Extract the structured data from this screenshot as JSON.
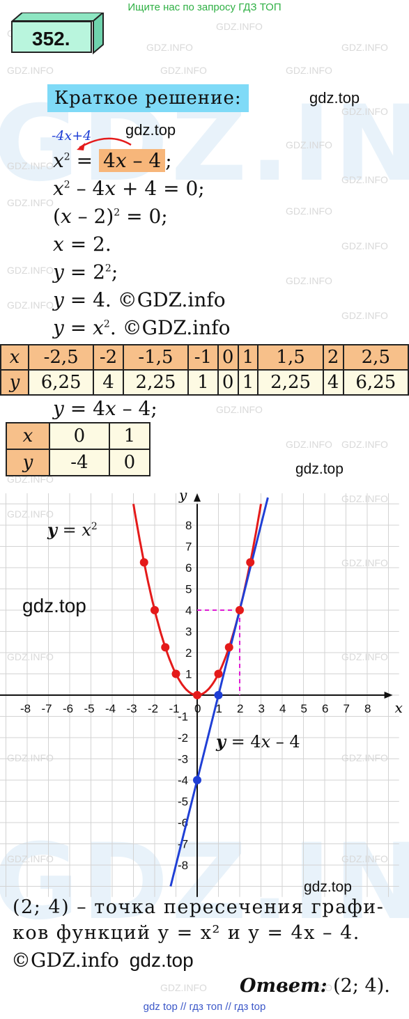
{
  "banner": "Ищите нас по запросу ГДЗ ТОП",
  "exercise_number": "352.",
  "heading": "Краткое решение:",
  "gdz_labels": [
    "gdz.top",
    "gdz.top",
    "gdz.top",
    "gdz.top",
    "gdz.top"
  ],
  "watermark_small": "GDZ.INFO",
  "watermark_big": "GDZ.INFO",
  "arrow_note": "-4x+4",
  "solution_lines": [
    "x² = 4x – 4;",
    "x² – 4x + 4 = 0;",
    "(x – 2)² = 0;",
    "x = 2.",
    "y = 2²;",
    "y = 4. ©GDZ.info",
    "y = x². ©GDZ.info"
  ],
  "table_parabola": {
    "x_label": "x",
    "y_label": "y",
    "x": [
      "-2,5",
      "-2",
      "-1,5",
      "-1",
      "0",
      "1",
      "1,5",
      "2",
      "2,5"
    ],
    "y": [
      "6,25",
      "4",
      "2,25",
      "1",
      "0",
      "1",
      "2,25",
      "4",
      "6,25"
    ]
  },
  "line_eq": "y = 4x – 4;",
  "table_line": {
    "x_label": "x",
    "y_label": "y",
    "x": [
      "0",
      "1"
    ],
    "y": [
      "-4",
      "0"
    ]
  },
  "graph": {
    "x_axis_label": "x",
    "y_axis_label": "y",
    "x_ticks": [
      "-8",
      "-7",
      "-6",
      "-5",
      "-4",
      "-3",
      "-2",
      "-1",
      "0",
      "1",
      "2",
      "3",
      "4",
      "5",
      "6",
      "7",
      "8"
    ],
    "y_ticks": [
      "8",
      "7",
      "6",
      "5",
      "4",
      "3",
      "2",
      "1",
      "-1",
      "-2",
      "-3",
      "-4",
      "-5",
      "-6",
      "-7",
      "-8"
    ],
    "parabola_label": "y = x²",
    "line_label": "y = 4x – 4",
    "parabola_points": [
      [
        -2.5,
        6.25
      ],
      [
        -2,
        4
      ],
      [
        -1.5,
        2.25
      ],
      [
        -1,
        1
      ],
      [
        0,
        0
      ],
      [
        1,
        1
      ],
      [
        1.5,
        2.25
      ],
      [
        2,
        4
      ],
      [
        2.5,
        6.25
      ]
    ],
    "line_points": [
      [
        0,
        -4
      ],
      [
        1,
        0
      ]
    ],
    "intersection": [
      2,
      4
    ],
    "colors": {
      "parabola": "#e41a1a",
      "line": "#1f3fd6",
      "helper": "#e01bd6",
      "grid": "#d3d3d3"
    }
  },
  "conclusion_lines": [
    "(2; 4) – точка пересечения графи-",
    "ков функций  y = x²  и  y = 4x – 4."
  ],
  "copyright": "©GDZ.info",
  "answer_label": "Ответ:",
  "answer_value": "(2; 4).",
  "bottom_links": "gdz top  //  гдз топ  //  гдз top"
}
